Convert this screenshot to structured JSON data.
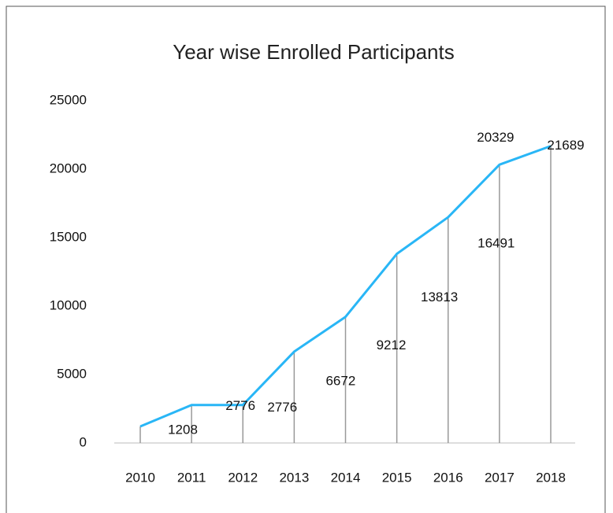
{
  "chart_data": {
    "type": "line",
    "title": "Year wise Enrolled Participants",
    "categories": [
      "2010",
      "2011",
      "2012",
      "2013",
      "2014",
      "2015",
      "2016",
      "2017",
      "2018"
    ],
    "series": [
      {
        "name": "Enrolled Participants",
        "color": "#29b6f6",
        "values": [
          1208,
          2776,
          2776,
          6672,
          9212,
          13813,
          16491,
          20329,
          21689
        ]
      }
    ],
    "ylim": [
      0,
      25000
    ],
    "yticks": [
      0,
      5000,
      10000,
      15000,
      20000,
      25000
    ],
    "grid": false
  }
}
